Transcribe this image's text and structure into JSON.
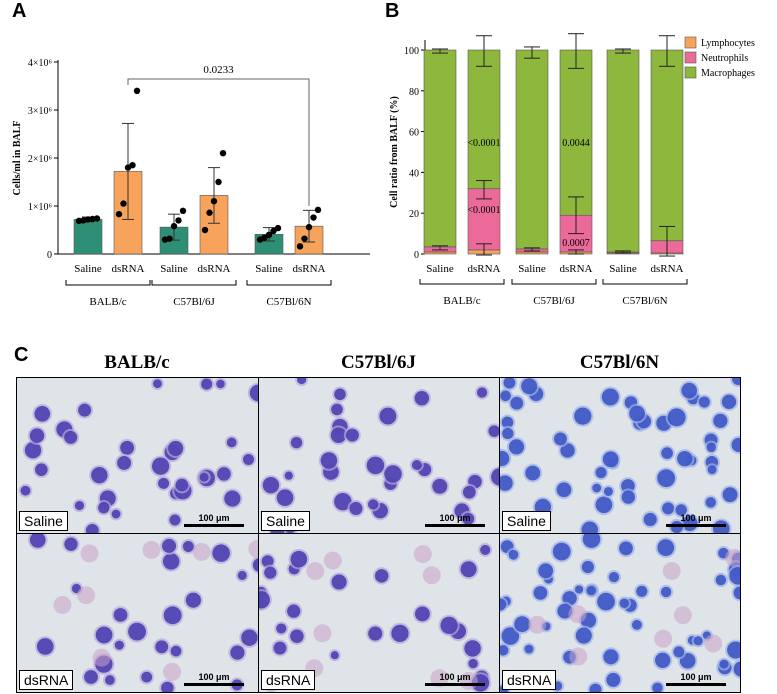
{
  "panels": {
    "a_letter": "A",
    "b_letter": "B",
    "c_letter": "C"
  },
  "chart_data": [
    {
      "id": "A",
      "type": "bar",
      "ylabel": "Cells/ml in BALF",
      "ytick_labels": [
        "0",
        "1×10⁶",
        "2×10⁶",
        "3×10⁶",
        "4×10⁶"
      ],
      "ytick_values": [
        0,
        1000000,
        2000000,
        3000000,
        4000000
      ],
      "ylim": [
        0,
        4000000
      ],
      "categories": [
        "Saline",
        "dsRNA",
        "Saline",
        "dsRNA",
        "Saline",
        "dsRNA"
      ],
      "groups": [
        "BALB/c",
        "C57Bl/6J",
        "C57Bl/6N"
      ],
      "values": [
        720000,
        1720000,
        560000,
        1220000,
        410000,
        580000
      ],
      "sd": [
        50000,
        1000000,
        270000,
        580000,
        140000,
        330000
      ],
      "points": [
        [
          690000,
          700000,
          720000,
          730000,
          740000
        ],
        [
          830000,
          1050000,
          1800000,
          1850000,
          3400000
        ],
        [
          300000,
          320000,
          580000,
          700000,
          900000
        ],
        [
          500000,
          860000,
          1100000,
          1500000,
          2100000
        ],
        [
          300000,
          340000,
          400000,
          480000,
          540000
        ],
        [
          160000,
          320000,
          560000,
          760000,
          920000
        ]
      ],
      "colors": [
        "#2f8f76",
        "#f7a35b"
      ],
      "significance": {
        "label": "0.0233",
        "from": 1,
        "to": 5
      }
    },
    {
      "id": "B",
      "type": "bar",
      "stacked": true,
      "ylabel": "Cell ratio from BALF (%)",
      "ytick_labels": [
        "0",
        "20",
        "40",
        "60",
        "80",
        "100"
      ],
      "ytick_values": [
        0,
        20,
        40,
        60,
        80,
        100
      ],
      "ylim": [
        0,
        100
      ],
      "categories": [
        "Saline",
        "dsRNA",
        "Saline",
        "dsRNA",
        "Saline",
        "dsRNA"
      ],
      "groups": [
        "BALB/c",
        "C57Bl/6J",
        "C57Bl/6N"
      ],
      "series": [
        {
          "name": "Lymphocytes",
          "color": "#f7a35b",
          "values": [
            1,
            2,
            1,
            1,
            0.5,
            0.5
          ]
        },
        {
          "name": "Neutrophils",
          "color": "#ec6a9a",
          "values": [
            2.5,
            30,
            1.5,
            18,
            0.5,
            6
          ]
        },
        {
          "name": "Macrophages",
          "color": "#8db83d",
          "values": [
            96.5,
            68,
            97.5,
            81,
            99,
            93.5
          ]
        }
      ],
      "error_top": [
        [
          98.5,
          100.5
        ],
        [
          92,
          107
        ],
        [
          96,
          101.5
        ],
        [
          91,
          108
        ],
        [
          98.5,
          100.5
        ],
        [
          92,
          107
        ]
      ],
      "error_mid": [
        [
          2,
          4
        ],
        [
          27,
          36
        ],
        [
          1.5,
          3
        ],
        [
          10,
          28
        ],
        [
          0.5,
          1.5
        ],
        [
          -1,
          13.5
        ]
      ],
      "error_low": [
        [
          null,
          null
        ],
        [
          -0.5,
          5
        ],
        [
          null,
          null
        ],
        [
          0,
          2
        ],
        [
          null,
          null
        ],
        [
          null,
          null
        ]
      ],
      "annotations": [
        {
          "text": "<0.0001",
          "bar": 1,
          "y": 55
        },
        {
          "text": "<0.0001",
          "bar": 1,
          "y": 22
        },
        {
          "text": "0.0044",
          "bar": 3,
          "y": 55
        },
        {
          "text": "0.0007",
          "bar": 3,
          "y": 6
        }
      ]
    }
  ],
  "micrographs": {
    "columns": [
      "BALB/c",
      "C57Bl/6J",
      "C57Bl/6N"
    ],
    "rows": [
      "Saline",
      "dsRNA"
    ],
    "scale_label": "100 μm"
  }
}
